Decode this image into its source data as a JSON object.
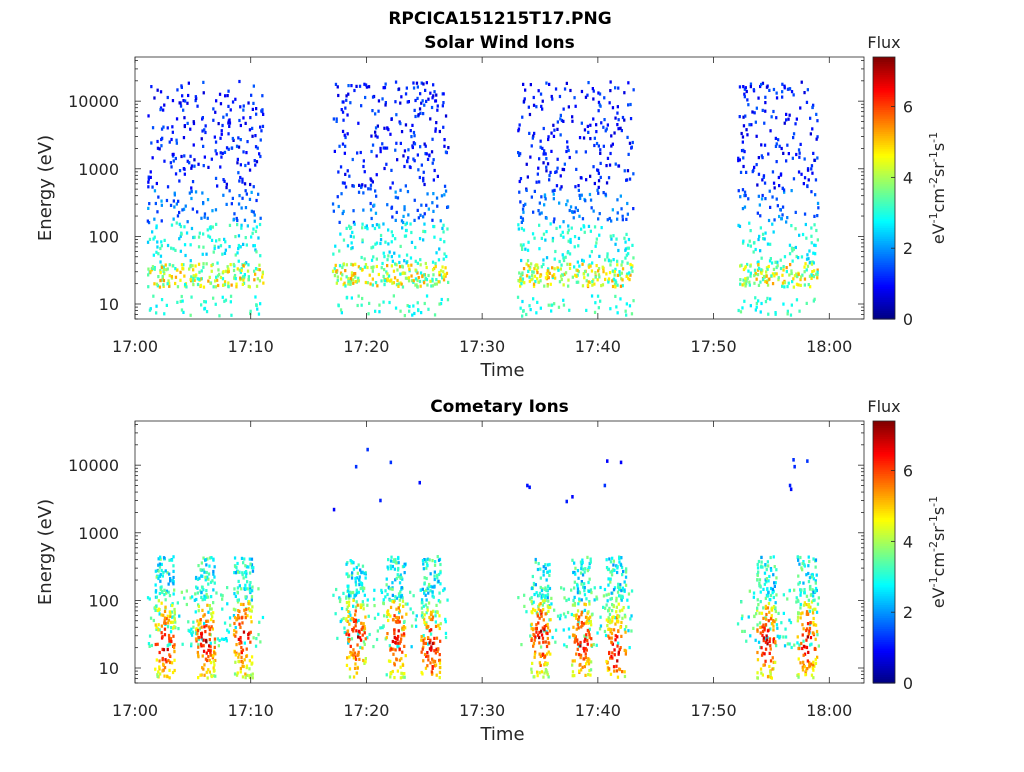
{
  "page_title": "RPCICA151215T17.PNG",
  "chart_data": [
    {
      "type": "heatmap",
      "title": "Solar Wind Ions",
      "xlabel": "Time",
      "ylabel": "Energy (eV)",
      "x_ticks": [
        "17:00",
        "17:10",
        "17:20",
        "17:30",
        "17:40",
        "17:50",
        "18:00"
      ],
      "xlim": [
        "17:00",
        "18:03"
      ],
      "y_ticks": [
        10,
        100,
        1000,
        10000
      ],
      "ylim": [
        6,
        45000
      ],
      "y_scale": "log",
      "colorbar": {
        "title": "Flux",
        "label": "eV-1cm-2sr-1s-1",
        "label_parts": [
          {
            "t": "eV",
            "sup": false
          },
          {
            "t": "-1",
            "sup": true
          },
          {
            "t": "cm",
            "sup": false
          },
          {
            "t": "-2",
            "sup": true
          },
          {
            "t": "sr",
            "sup": false
          },
          {
            "t": "-1",
            "sup": true
          },
          {
            "t": "s",
            "sup": false
          },
          {
            "t": "-1",
            "sup": true
          }
        ],
        "ticks": [
          0,
          2,
          4,
          6
        ],
        "range": [
          0,
          7.4
        ],
        "colormap": "jet"
      },
      "measurement_intervals": [
        {
          "start": "17:01",
          "end": "17:11"
        },
        {
          "start": "17:17",
          "end": "17:27"
        },
        {
          "start": "17:33",
          "end": "17:43"
        },
        {
          "start": "17:52",
          "end": "17:59"
        }
      ],
      "summary": "Sparse high-energy counts (flux ~0.5-1.5) from ~200 eV to ~20000 eV; denser low-energy population at 20-40 eV with flux 3-5.5 during each interval."
    },
    {
      "type": "heatmap",
      "title": "Cometary Ions",
      "xlabel": "Time",
      "ylabel": "Energy (eV)",
      "x_ticks": [
        "17:00",
        "17:10",
        "17:20",
        "17:30",
        "17:40",
        "17:50",
        "18:00"
      ],
      "xlim": [
        "17:00",
        "18:03"
      ],
      "y_ticks": [
        10,
        100,
        1000,
        10000
      ],
      "ylim": [
        6,
        45000
      ],
      "y_scale": "log",
      "colorbar": {
        "title": "Flux",
        "label": "eV-1cm-2sr-1s-1",
        "label_parts": [
          {
            "t": "eV",
            "sup": false
          },
          {
            "t": "-1",
            "sup": true
          },
          {
            "t": "cm",
            "sup": false
          },
          {
            "t": "-2",
            "sup": true
          },
          {
            "t": "sr",
            "sup": false
          },
          {
            "t": "-1",
            "sup": true
          },
          {
            "t": "s",
            "sup": false
          },
          {
            "t": "-1",
            "sup": true
          }
        ],
        "ticks": [
          0,
          2,
          4,
          6
        ],
        "range": [
          0,
          7.4
        ],
        "colormap": "jet"
      },
      "measurement_intervals": [
        {
          "start": "17:01",
          "end": "17:11"
        },
        {
          "start": "17:17",
          "end": "17:27"
        },
        {
          "start": "17:33",
          "end": "17:43"
        },
        {
          "start": "17:52",
          "end": "17:59"
        }
      ],
      "bursts": [
        {
          "time": "17:02.5",
          "peak_eV": 22
        },
        {
          "time": "17:06",
          "peak_eV": 25
        },
        {
          "time": "17:09.3",
          "peak_eV": 30
        },
        {
          "time": "17:19",
          "peak_eV": 30
        },
        {
          "time": "17:22.5",
          "peak_eV": 28
        },
        {
          "time": "17:25.5",
          "peak_eV": 20
        },
        {
          "time": "17:35",
          "peak_eV": 30
        },
        {
          "time": "17:38.5",
          "peak_eV": 25
        },
        {
          "time": "17:41.5",
          "peak_eV": 18
        },
        {
          "time": "17:54.5",
          "peak_eV": 25
        },
        {
          "time": "17:58",
          "peak_eV": 22
        }
      ],
      "summary": "Intense bursts (flux up to ~7) at 10-50 eV with tails to ~400 eV; isolated counts near 2000-20000 eV."
    }
  ]
}
